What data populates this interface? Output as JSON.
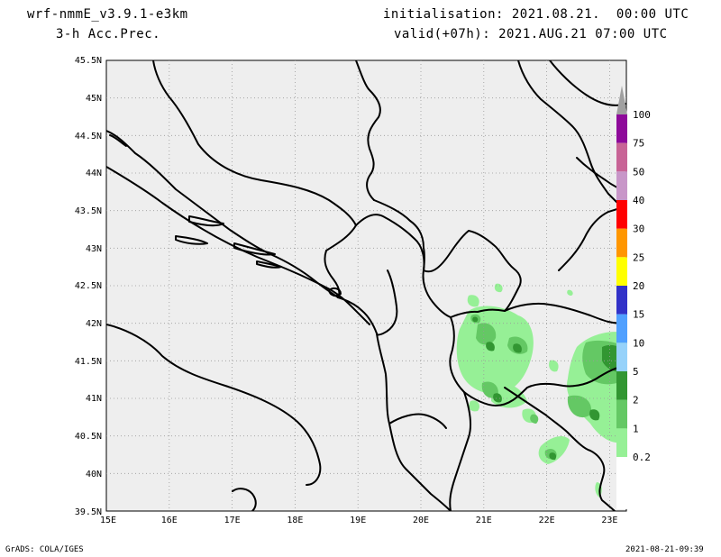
{
  "header": {
    "model": "wrf-nmmE_v3.9.1-e3km",
    "field": "3-h Acc.Prec.",
    "init": "initialisation: 2021.08.21.  00:00 UTC",
    "valid": "valid(+07h): 2021.AUG.21 07:00 UTC"
  },
  "map": {
    "lat_labels": [
      "45.5N",
      "45N",
      "44.5N",
      "44N",
      "43.5N",
      "43N",
      "42.5N",
      "42N",
      "41.5N",
      "41N",
      "40.5N",
      "40N",
      "39.5N"
    ],
    "lon_labels": [
      "15E",
      "16E",
      "17E",
      "18E",
      "19E",
      "20E",
      "21E",
      "22E",
      "23E"
    ]
  },
  "legend": {
    "levels": [
      {
        "label": "100",
        "color": "#a0a0a0"
      },
      {
        "label": "75",
        "color": "#8e0a9a"
      },
      {
        "label": "50",
        "color": "#c86496"
      },
      {
        "label": "40",
        "color": "#c896c8"
      },
      {
        "label": "30",
        "color": "#ff0000"
      },
      {
        "label": "25",
        "color": "#ff9600"
      },
      {
        "label": "20",
        "color": "#ffff00"
      },
      {
        "label": "15",
        "color": "#3232c8"
      },
      {
        "label": "10",
        "color": "#50a0ff"
      },
      {
        "label": "5",
        "color": "#96d2fa"
      },
      {
        "label": "2",
        "color": "#329632"
      },
      {
        "label": "1",
        "color": "#64c864"
      },
      {
        "label": "0.2",
        "color": "#96f096"
      }
    ]
  },
  "footer": {
    "left": "GrADS: COLA/IGES",
    "right": "2021-08-21-09:39"
  }
}
